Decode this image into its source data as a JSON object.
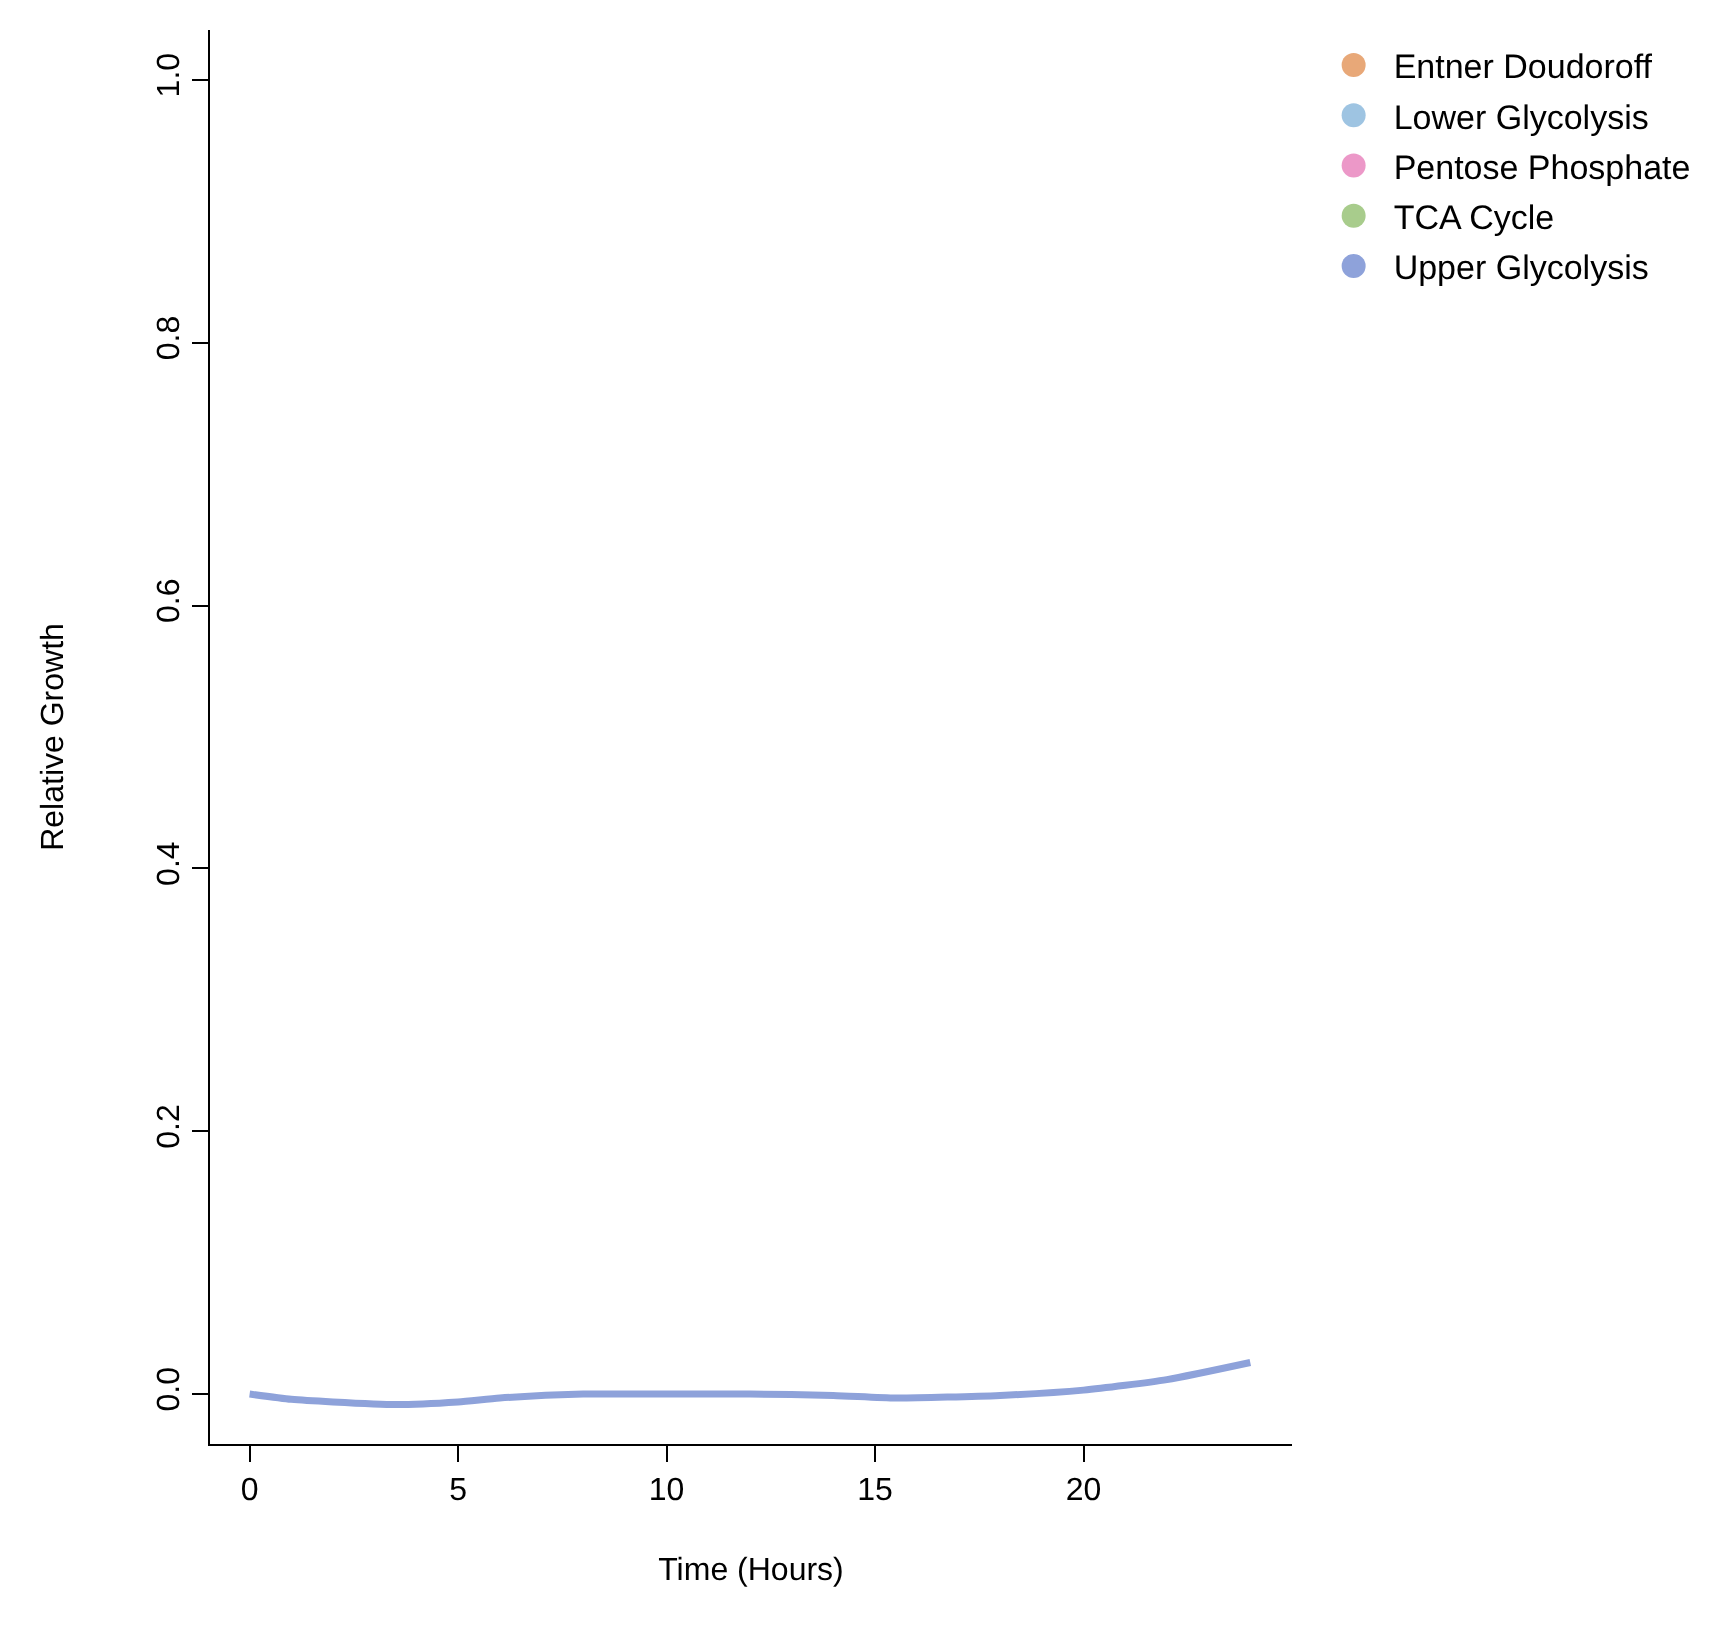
{
  "chart_data": {
    "type": "line",
    "xlabel": "Time (Hours)",
    "ylabel": "Relative Growth",
    "x": [
      0,
      1,
      2,
      3.5,
      5,
      6,
      8,
      10,
      12,
      14,
      15.5,
      18,
      20,
      22,
      24
    ],
    "series": [
      {
        "name": "Entner Doudoroff",
        "color": "#e8a878",
        "values": [
          null,
          null,
          null,
          null,
          null,
          null,
          null,
          null,
          null,
          null,
          null,
          null,
          null,
          null,
          null
        ]
      },
      {
        "name": "Lower Glycolysis",
        "color": "#9ec4e2",
        "values": [
          null,
          null,
          null,
          null,
          null,
          null,
          null,
          null,
          null,
          null,
          null,
          null,
          null,
          null,
          null
        ]
      },
      {
        "name": "Pentose Phosphate",
        "color": "#ec98c8",
        "values": [
          null,
          null,
          null,
          null,
          null,
          null,
          null,
          null,
          null,
          null,
          null,
          null,
          null,
          null,
          null
        ]
      },
      {
        "name": "TCA Cycle",
        "color": "#a8cc8c",
        "values": [
          null,
          null,
          null,
          null,
          null,
          null,
          null,
          null,
          null,
          null,
          null,
          null,
          null,
          null,
          null
        ]
      },
      {
        "name": "Upper Glycolysis",
        "color": "#8ea2da",
        "values": [
          0,
          -0.004,
          -0.006,
          -0.008,
          -0.006,
          -0.003,
          0,
          0,
          0,
          -0.001,
          -0.003,
          -0.001,
          0.003,
          0.011,
          0.024
        ]
      }
    ],
    "xlim": [
      -0.95,
      25
    ],
    "xticks": [
      0,
      5,
      10,
      15,
      20
    ],
    "ylim": [
      -0.038,
      1.038
    ],
    "yticks": [
      {
        "value": 0,
        "label": "0.0"
      },
      {
        "value": 0.2,
        "label": "0.2"
      },
      {
        "value": 0.4,
        "label": "0.4"
      },
      {
        "value": 0.6,
        "label": "0.6"
      },
      {
        "value": 0.8,
        "label": "0.8"
      },
      {
        "value": 1,
        "label": "1.0"
      }
    ],
    "legend": "top right",
    "line_style": "solid"
  }
}
